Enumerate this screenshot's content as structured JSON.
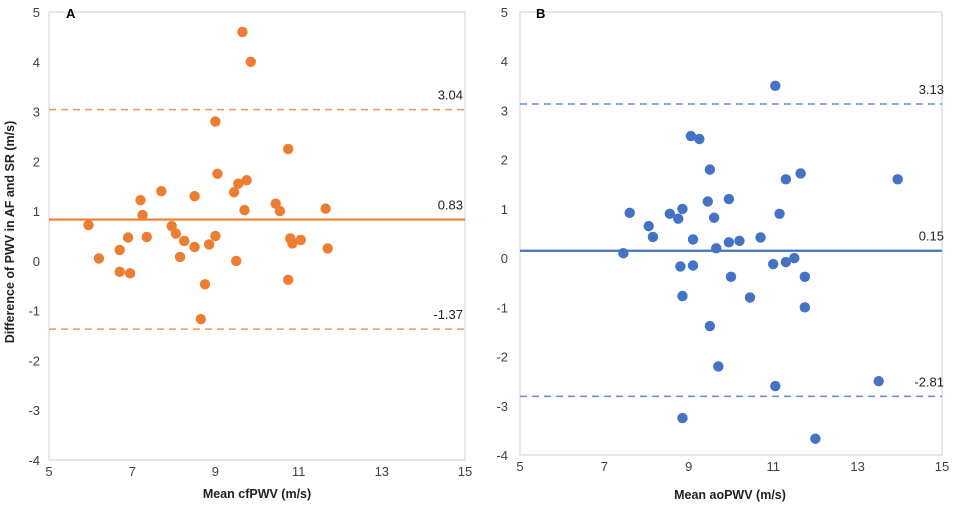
{
  "figure": {
    "ylabel": "Difference of PWV in AF and SR (m/s)"
  },
  "chart_data": [
    {
      "type": "scatter",
      "panel": "A",
      "xlabel": "Mean cfPWV (m/s)",
      "ylabel": "Difference of PWV in AF and SR (m/s)",
      "xlim": [
        5,
        15
      ],
      "ylim": [
        -4,
        5
      ],
      "xticks": [
        5,
        7,
        9,
        11,
        13,
        15
      ],
      "yticks": [
        -4,
        -3,
        -2,
        -1,
        0,
        1,
        2,
        3,
        4,
        5
      ],
      "color": "#ED7D31",
      "mean_line": {
        "value": 0.83,
        "label": "0.83"
      },
      "upper_loa": {
        "value": 3.04,
        "label": "3.04"
      },
      "lower_loa": {
        "value": -1.37,
        "label": "-1.37"
      },
      "points": [
        [
          5.95,
          0.72
        ],
        [
          6.2,
          0.05
        ],
        [
          6.7,
          0.22
        ],
        [
          6.7,
          -0.22
        ],
        [
          6.9,
          0.47
        ],
        [
          6.95,
          -0.25
        ],
        [
          7.2,
          1.22
        ],
        [
          7.25,
          0.92
        ],
        [
          7.35,
          0.48
        ],
        [
          7.7,
          1.4
        ],
        [
          7.95,
          0.7
        ],
        [
          8.05,
          0.55
        ],
        [
          8.15,
          0.08
        ],
        [
          8.25,
          0.4
        ],
        [
          8.5,
          1.3
        ],
        [
          8.5,
          0.28
        ],
        [
          8.65,
          -1.17
        ],
        [
          8.75,
          -0.47
        ],
        [
          8.85,
          0.33
        ],
        [
          9.0,
          0.5
        ],
        [
          9.0,
          2.8
        ],
        [
          9.05,
          1.75
        ],
        [
          9.45,
          1.38
        ],
        [
          9.5,
          0.0
        ],
        [
          9.55,
          1.55
        ],
        [
          9.65,
          4.6
        ],
        [
          9.7,
          1.02
        ],
        [
          9.75,
          1.62
        ],
        [
          9.85,
          4.0
        ],
        [
          10.45,
          1.15
        ],
        [
          10.55,
          1.0
        ],
        [
          10.75,
          2.25
        ],
        [
          10.75,
          -0.38
        ],
        [
          10.8,
          0.45
        ],
        [
          10.85,
          0.35
        ],
        [
          11.05,
          0.42
        ],
        [
          11.65,
          1.05
        ],
        [
          11.7,
          0.25
        ]
      ]
    },
    {
      "type": "scatter",
      "panel": "B",
      "xlabel": "Mean aoPWV (m/s)",
      "ylabel": "",
      "xlim": [
        5,
        15
      ],
      "ylim": [
        -4,
        5
      ],
      "xticks": [
        5,
        7,
        9,
        11,
        13,
        15
      ],
      "yticks": [
        -4,
        -3,
        -2,
        -1,
        0,
        1,
        2,
        3,
        4,
        5
      ],
      "color": "#4472C4",
      "mean_line": {
        "value": 0.15,
        "label": "0.15"
      },
      "upper_loa": {
        "value": 3.13,
        "label": "3.13"
      },
      "lower_loa": {
        "value": -2.81,
        "label": "-2.81"
      },
      "points": [
        [
          7.45,
          0.1
        ],
        [
          7.6,
          0.92
        ],
        [
          8.05,
          0.65
        ],
        [
          8.15,
          0.43
        ],
        [
          8.55,
          0.9
        ],
        [
          8.75,
          0.8
        ],
        [
          8.8,
          -0.17
        ],
        [
          8.85,
          1.0
        ],
        [
          8.85,
          -0.77
        ],
        [
          8.85,
          -3.25
        ],
        [
          9.05,
          2.48
        ],
        [
          9.1,
          -0.15
        ],
        [
          9.1,
          0.38
        ],
        [
          9.25,
          2.42
        ],
        [
          9.45,
          1.15
        ],
        [
          9.5,
          1.8
        ],
        [
          9.5,
          -1.38
        ],
        [
          9.6,
          0.82
        ],
        [
          9.65,
          0.2
        ],
        [
          9.7,
          -2.2
        ],
        [
          9.95,
          0.32
        ],
        [
          9.95,
          1.2
        ],
        [
          10.0,
          -0.38
        ],
        [
          10.2,
          0.35
        ],
        [
          10.45,
          -0.8
        ],
        [
          10.7,
          0.42
        ],
        [
          11.0,
          -0.12
        ],
        [
          11.05,
          -2.6
        ],
        [
          11.05,
          3.5
        ],
        [
          11.15,
          0.9
        ],
        [
          11.3,
          -0.08
        ],
        [
          11.3,
          1.6
        ],
        [
          11.5,
          0.0
        ],
        [
          11.65,
          1.72
        ],
        [
          11.75,
          -0.38
        ],
        [
          11.75,
          -1.0
        ],
        [
          12.0,
          -3.67
        ],
        [
          13.5,
          -2.5
        ],
        [
          13.95,
          1.6
        ]
      ]
    }
  ]
}
